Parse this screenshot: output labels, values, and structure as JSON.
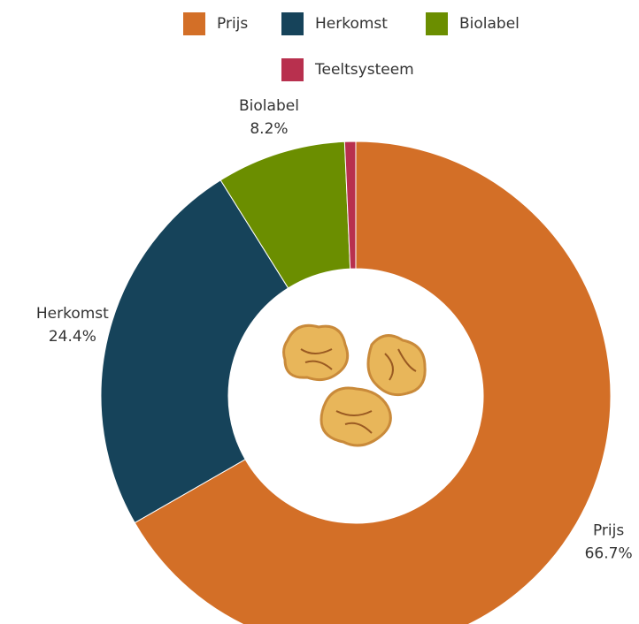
{
  "chart_data": {
    "type": "donut",
    "categories": [
      "Prijs",
      "Herkomst",
      "Biolabel",
      "Teeltsysteem"
    ],
    "values": [
      66.7,
      24.4,
      8.2,
      0.7
    ],
    "value_labels": [
      "66.7%",
      "24.4%",
      "8.2%",
      null
    ],
    "colors": [
      "#d36f27",
      "#16435a",
      "#6b8e00",
      "#b8304e"
    ],
    "legend": "top"
  }
}
